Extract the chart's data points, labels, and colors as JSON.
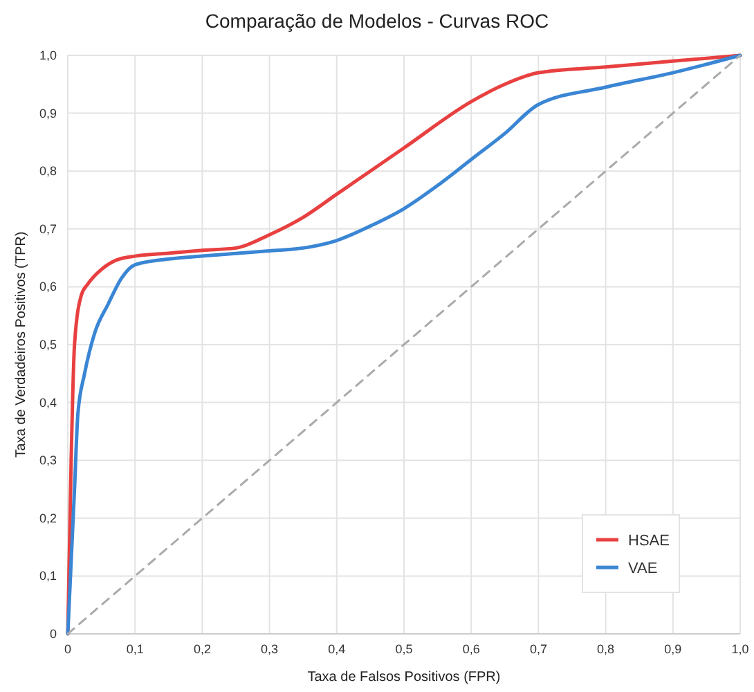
{
  "chart_data": {
    "type": "line",
    "title": "Comparação de Modelos - Curvas ROC",
    "xlabel": "Taxa de Falsos Positivos (FPR)",
    "ylabel": "Taxa de Verdadeiros Positivos (TPR)",
    "xlim": [
      0,
      1
    ],
    "ylim": [
      0,
      1
    ],
    "xticks": [
      0,
      {
        "value": 0.1,
        "label": "0,1"
      },
      {
        "value": 0.2,
        "label": "0,2"
      },
      {
        "value": 0.3,
        "label": "0,3"
      },
      {
        "value": 0.4,
        "label": "0,4"
      },
      {
        "value": 0.5,
        "label": "0,5"
      },
      {
        "value": 0.6,
        "label": "0,6"
      },
      {
        "value": 0.7,
        "label": "0,7"
      },
      {
        "value": 0.8,
        "label": "0,8"
      },
      {
        "value": 0.9,
        "label": "0,9"
      },
      {
        "value": 1,
        "label": "1,0"
      }
    ],
    "yticks": [
      0,
      {
        "value": 0.1,
        "label": "0,1"
      },
      {
        "value": 0.2,
        "label": "0,2"
      },
      {
        "value": 0.3,
        "label": "0,3"
      },
      {
        "value": 0.4,
        "label": "0,4"
      },
      {
        "value": 0.5,
        "label": "0,5"
      },
      {
        "value": 0.6,
        "label": "0,6"
      },
      {
        "value": 0.7,
        "label": "0,7"
      },
      {
        "value": 0.8,
        "label": "0,8"
      },
      {
        "value": 0.9,
        "label": "0,9"
      },
      {
        "value": 1,
        "label": "1,0"
      }
    ],
    "grid": true,
    "legend": "bottom right",
    "marker": "none",
    "series": [
      {
        "name": "HSAE",
        "color": "#e84040",
        "line_style": "solid",
        "x": [
          0,
          0.005,
          0.01,
          0.02,
          0.03,
          0.05,
          0.07,
          0.1,
          0.15,
          0.2,
          0.25,
          0.3,
          0.35,
          0.4,
          0.5,
          0.6,
          0.65,
          0.7,
          0.8,
          0.9,
          1
        ],
        "values": [
          0,
          0.3,
          0.5,
          0.585,
          0.605,
          0.63,
          0.645,
          0.653,
          0.658,
          0.663,
          0.667,
          0.69,
          0.72,
          0.76,
          0.84,
          0.92,
          0.95,
          0.97,
          0.98,
          0.99,
          1
        ]
      },
      {
        "name": "VAE",
        "color": "#3a86d4",
        "line_style": "solid",
        "x": [
          0,
          0.01,
          0.015,
          0.025,
          0.04,
          0.06,
          0.08,
          0.1,
          0.15,
          0.2,
          0.3,
          0.35,
          0.4,
          0.45,
          0.5,
          0.55,
          0.6,
          0.65,
          0.7,
          0.8,
          0.9,
          1
        ],
        "values": [
          0,
          0.25,
          0.38,
          0.45,
          0.52,
          0.57,
          0.615,
          0.638,
          0.648,
          0.653,
          0.662,
          0.667,
          0.68,
          0.705,
          0.735,
          0.775,
          0.82,
          0.865,
          0.915,
          0.945,
          0.97,
          1
        ]
      },
      {
        "color": "#aaaaaa",
        "line_style": "dashed",
        "x": [
          0,
          1
        ],
        "values": [
          0,
          1
        ]
      }
    ]
  }
}
